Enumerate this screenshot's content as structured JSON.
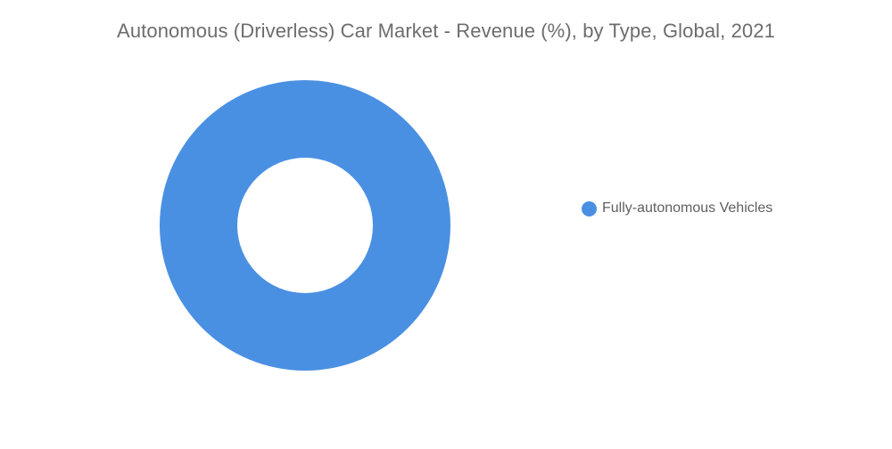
{
  "chart_data": {
    "type": "pie",
    "title": "Autonomous (Driverless) Car Market - Revenue (%), by Type, Global, 2021",
    "categories": [
      "Fully-autonomous Vehicles"
    ],
    "values": [
      100
    ],
    "colors": [
      "#4a90e2"
    ],
    "legend_position": "right",
    "style": "donut"
  }
}
